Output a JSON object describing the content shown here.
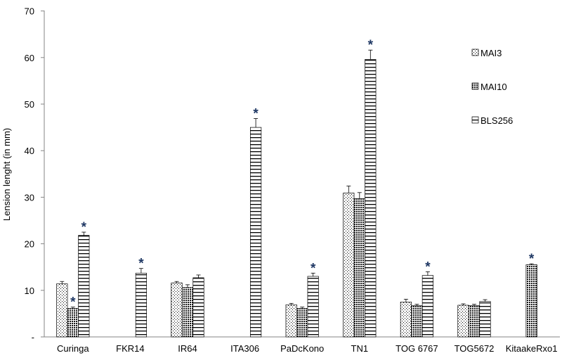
{
  "chart_data": {
    "type": "bar",
    "title": "",
    "xlabel": "",
    "ylabel": "Lension lenght (in mm)",
    "ylim": [
      0,
      70
    ],
    "yticks": [
      {
        "value": 70,
        "label": "70"
      },
      {
        "value": 60,
        "label": "60"
      },
      {
        "value": 50,
        "label": "50"
      },
      {
        "value": 40,
        "label": "40"
      },
      {
        "value": 30,
        "label": "30"
      },
      {
        "value": 20,
        "label": "20"
      },
      {
        "value": 10,
        "label": "10"
      },
      {
        "value": 0,
        "label": "-"
      }
    ],
    "categories": [
      "Curinga",
      "FKR14",
      "IR64",
      "ITA306",
      "PaDcKono",
      "TN1",
      "TOG 6767",
      "TOG5672",
      "KitaakeRxo1"
    ],
    "series": [
      {
        "name": "MAI3",
        "pattern": "dots",
        "values": [
          11.4,
          null,
          11.6,
          null,
          6.9,
          30.9,
          7.5,
          6.8,
          null
        ],
        "errors": [
          0.5,
          null,
          0.3,
          null,
          0.3,
          1.5,
          0.6,
          0.3,
          null
        ]
      },
      {
        "name": "MAI10",
        "pattern": "checker",
        "values": [
          6.1,
          null,
          10.6,
          null,
          6.1,
          29.7,
          6.7,
          6.7,
          15.5
        ],
        "errors": [
          0.3,
          null,
          0.6,
          null,
          0.3,
          1.3,
          0.3,
          0.3,
          0.2
        ]
      },
      {
        "name": "BLS256",
        "pattern": "hlines",
        "values": [
          21.8,
          13.7,
          12.7,
          45.0,
          13.0,
          59.6,
          13.2,
          7.6,
          null
        ],
        "errors": [
          0.7,
          1.0,
          0.6,
          1.9,
          0.7,
          2.0,
          0.8,
          0.4,
          null
        ]
      }
    ],
    "significance": [
      {
        "category": "Curinga",
        "series": "MAI10",
        "mark": "*"
      },
      {
        "category": "Curinga",
        "series": "BLS256",
        "mark": "*"
      },
      {
        "category": "FKR14",
        "series": "BLS256",
        "mark": "*"
      },
      {
        "category": "ITA306",
        "series": "BLS256",
        "mark": "*"
      },
      {
        "category": "PaDcKono",
        "series": "BLS256",
        "mark": "*"
      },
      {
        "category": "TN1",
        "series": "BLS256",
        "mark": "*"
      },
      {
        "category": "TOG 6767",
        "series": "BLS256",
        "mark": "*"
      },
      {
        "category": "KitaakeRxo1",
        "series": "MAI10",
        "mark": "*"
      }
    ],
    "legend_position": "top-right",
    "grid": false,
    "colors": {
      "axis": "#868686",
      "bar_stroke": "#000000",
      "star": "#1f3864",
      "background": "#ffffff"
    }
  }
}
